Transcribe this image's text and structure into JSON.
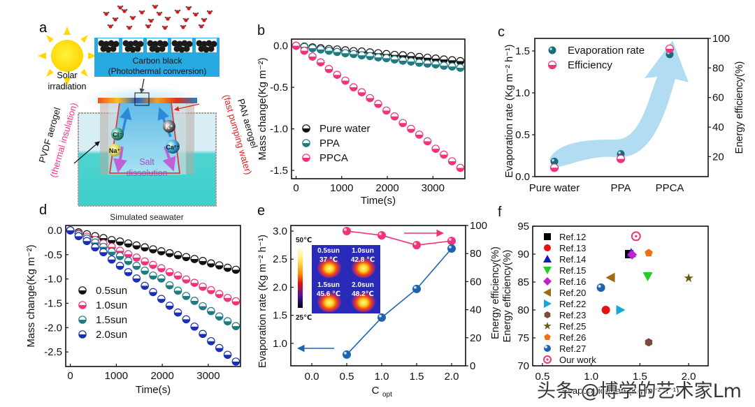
{
  "panels": {
    "a": {
      "label": "a",
      "sun_label_1": "Solar",
      "sun_label_2": "irradiation",
      "carbon_label_1": "Carbon black",
      "carbon_label_2": "(Photothermal conversion)",
      "pvdf_label": "PVDF aerogel",
      "pvdf_sub": "(thermal insulation)",
      "pan_label": "PAN aerogel",
      "pan_sub": "(fast pumping water)",
      "ions": [
        "Cl⁻",
        "Na⁺",
        "K⁺",
        "Ca²⁺"
      ],
      "salt_label_1": "Salt",
      "salt_label_2": "dissolution",
      "seawater_label": "Simulated seawater"
    },
    "e_inset": {
      "scale_max": "50℃",
      "scale_min": "25℃",
      "cells": [
        {
          "sun": "0.5sun",
          "temp": "37 ℃"
        },
        {
          "sun": "1.0sun",
          "temp": "42.8 ℃"
        },
        {
          "sun": "1.5sun",
          "temp": "45.6 ℃"
        },
        {
          "sun": "2.0sun",
          "temp": "48.2℃"
        }
      ]
    },
    "f_xlabel": "Evaporation rate(Kg m⁻² h⁻¹)"
  },
  "watermark": "头条 @博学的艺术家Lm",
  "colors": {
    "pure_water": "#111111",
    "ppa": "#1f7a82",
    "ppca": "#f0337a",
    "sun05": "#111111",
    "sun10": "#f0337a",
    "sun15": "#1f7a82",
    "sun20": "#1b2fb5",
    "evap": "#1f63b0",
    "eff": "#f0337a",
    "arrow_c": "#a8d8f0"
  },
  "chart_data": [
    {
      "panel": "b",
      "type": "scatter",
      "title": "",
      "xlabel": "Time(s)",
      "ylabel": "Mass change(Kg m⁻²)",
      "xlim": [
        -100,
        3700
      ],
      "ylim": [
        -1.6,
        0.08
      ],
      "xticks": [
        0,
        1000,
        2000,
        3000
      ],
      "yticks": [
        0.0,
        -0.5,
        -1.0,
        -1.5
      ],
      "ytick_labels": [
        "0.0",
        "-0.5",
        "-1.0",
        "-1.5"
      ],
      "legend": "bottom-left",
      "x": [
        0,
        180,
        360,
        540,
        720,
        900,
        1080,
        1260,
        1440,
        1620,
        1800,
        1980,
        2160,
        2340,
        2520,
        2700,
        2880,
        3060,
        3240,
        3420,
        3600
      ],
      "series": [
        {
          "name": "Pure water",
          "color_key": "pure_water",
          "values": [
            0,
            -0.01,
            -0.02,
            -0.03,
            -0.04,
            -0.045,
            -0.055,
            -0.065,
            -0.07,
            -0.08,
            -0.09,
            -0.1,
            -0.11,
            -0.115,
            -0.125,
            -0.135,
            -0.145,
            -0.155,
            -0.165,
            -0.175,
            -0.185
          ]
        },
        {
          "name": "PPA",
          "color_key": "ppa",
          "values": [
            0,
            -0.015,
            -0.03,
            -0.045,
            -0.06,
            -0.075,
            -0.09,
            -0.1,
            -0.115,
            -0.125,
            -0.14,
            -0.15,
            -0.165,
            -0.18,
            -0.19,
            -0.205,
            -0.215,
            -0.225,
            -0.24,
            -0.25,
            -0.265
          ]
        },
        {
          "name": "PPCA",
          "color_key": "ppca",
          "values": [
            0,
            -0.06,
            -0.13,
            -0.2,
            -0.28,
            -0.35,
            -0.42,
            -0.5,
            -0.56,
            -0.63,
            -0.7,
            -0.78,
            -0.85,
            -0.93,
            -1.0,
            -1.07,
            -1.15,
            -1.24,
            -1.31,
            -1.39,
            -1.47
          ]
        }
      ]
    },
    {
      "panel": "c",
      "type": "scatter",
      "title": "",
      "categories": [
        "Pure water",
        "PPA",
        "PPCA"
      ],
      "xlabel": "",
      "ylabel": "Evaporation rate (Kg m⁻² h⁻¹)",
      "ylabel_right": "Energy efficiency(%)",
      "ylim": [
        0,
        1.65
      ],
      "ylim_right": [
        6.5,
        100
      ],
      "yticks": [
        0.0,
        0.5,
        1.0,
        1.5
      ],
      "ytick_labels": [
        "0.0",
        "0.5",
        "1.0",
        "1.5"
      ],
      "yticks_right": [
        20,
        40,
        60,
        80,
        100
      ],
      "legend": "top-left",
      "series": [
        {
          "name": "Evaporation rate",
          "axis": "left",
          "color_key": "evap",
          "values": [
            0.18,
            0.27,
            1.46
          ]
        },
        {
          "name": "Efficiency",
          "axis": "right",
          "color_key": "eff",
          "values": [
            12.5,
            18.5,
            93
          ]
        }
      ],
      "annotations": [
        "upward arrow (light blue) through the three categories"
      ]
    },
    {
      "panel": "d",
      "type": "scatter",
      "title": "",
      "xlabel": "Time(s)",
      "ylabel": "Mass change(Kg m⁻²)",
      "xlim": [
        -100,
        3700
      ],
      "ylim": [
        -2.8,
        0.1
      ],
      "xticks": [
        0,
        1000,
        2000,
        3000
      ],
      "yticks": [
        0.0,
        -0.5,
        -1.0,
        -1.5,
        -2.0,
        -2.5
      ],
      "ytick_labels": [
        "0.0",
        "-0.5",
        "-1.0",
        "-1.5",
        "-2.0",
        "-2.5"
      ],
      "legend": "bottom-left",
      "x": [
        0,
        180,
        360,
        540,
        720,
        900,
        1080,
        1260,
        1440,
        1620,
        1800,
        1980,
        2160,
        2340,
        2520,
        2700,
        2880,
        3060,
        3240,
        3420,
        3600
      ],
      "series": [
        {
          "name": "0.5sun",
          "color_key": "sun05",
          "values": [
            0,
            -0.04,
            -0.08,
            -0.12,
            -0.16,
            -0.2,
            -0.23,
            -0.27,
            -0.31,
            -0.35,
            -0.39,
            -0.43,
            -0.47,
            -0.51,
            -0.55,
            -0.59,
            -0.63,
            -0.68,
            -0.72,
            -0.77,
            -0.81
          ]
        },
        {
          "name": "1.0sun",
          "color_key": "sun10",
          "values": [
            0,
            -0.06,
            -0.13,
            -0.2,
            -0.27,
            -0.34,
            -0.42,
            -0.49,
            -0.56,
            -0.64,
            -0.71,
            -0.78,
            -0.86,
            -0.93,
            -1.01,
            -1.08,
            -1.16,
            -1.23,
            -1.31,
            -1.39,
            -1.46
          ]
        },
        {
          "name": "1.5sun",
          "color_key": "sun15",
          "values": [
            0,
            -0.08,
            -0.17,
            -0.25,
            -0.34,
            -0.44,
            -0.53,
            -0.63,
            -0.73,
            -0.83,
            -0.93,
            -0.99,
            -1.13,
            -1.24,
            -1.35,
            -1.45,
            -1.56,
            -1.66,
            -1.77,
            -1.87,
            -1.97
          ]
        },
        {
          "name": "2.0sun",
          "color_key": "sun20",
          "values": [
            0,
            -0.12,
            -0.22,
            -0.35,
            -0.45,
            -0.6,
            -0.73,
            -0.86,
            -0.99,
            -1.14,
            -1.27,
            -1.41,
            -1.55,
            -1.69,
            -1.83,
            -1.98,
            -2.13,
            -2.28,
            -2.42,
            -2.56,
            -2.7
          ]
        }
      ]
    },
    {
      "panel": "e",
      "type": "line",
      "title": "",
      "xlabel": "C",
      "xlabel_sub": "opt",
      "ylabel": "Evaporation rate (Kg m⁻² h⁻¹)",
      "ylabel_right": "Energy efficiency(%)",
      "xlim": [
        -0.3,
        2.2
      ],
      "ylim": [
        0.6,
        3.1
      ],
      "ylim_right": [
        0,
        100
      ],
      "xticks": [
        0.0,
        0.5,
        1.0,
        1.5,
        2.0
      ],
      "xtick_labels": [
        "0.0",
        "0.5",
        "1.0",
        "1.5",
        "2.0"
      ],
      "yticks": [
        1.0,
        1.5,
        2.0,
        2.5,
        3.0
      ],
      "ytick_labels": [
        "1.0",
        "1.5",
        "2.0",
        "2.5",
        "3.0"
      ],
      "yticks_right": [
        0,
        20,
        40,
        60,
        80,
        100
      ],
      "x": [
        0.5,
        1.0,
        1.5,
        2.0
      ],
      "series": [
        {
          "name": "Evaporation rate",
          "axis": "left",
          "color_key": "evap",
          "values": [
            0.8,
            1.46,
            1.97,
            2.69
          ]
        },
        {
          "name": "Energy efficiency",
          "axis": "right",
          "color_key": "eff",
          "values": [
            96,
            93,
            86,
            89
          ]
        }
      ],
      "annotations": [
        "left-pointing blue arrow → left axis",
        "right-pointing pink arrow → right axis",
        "inset: IR thermal images"
      ]
    },
    {
      "panel": "f",
      "type": "scatter",
      "title": "",
      "xlabel": "Evaporation rate(Kg m⁻² h⁻¹)",
      "ylabel": "Energy efficiency(%)",
      "xlim": [
        0.4,
        2.2
      ],
      "ylim": [
        70,
        95
      ],
      "xticks": [
        0.5,
        1.0,
        1.5,
        2.0
      ],
      "xtick_labels": [
        "0.5",
        "1.0",
        "1.5",
        "2.0"
      ],
      "yticks": [
        70,
        75,
        80,
        85,
        90,
        95
      ],
      "legend": "top-left",
      "points": [
        {
          "name": "Ref.12",
          "marker": "square",
          "color": "#000000",
          "x": 1.39,
          "y": 90
        },
        {
          "name": "Ref.13",
          "marker": "circle",
          "color": "#e81010",
          "x": 1.15,
          "y": 80
        },
        {
          "name": "Ref.14",
          "marker": "triangle-up",
          "color": "#1414c8",
          "x": 1.41,
          "y": 90.2
        },
        {
          "name": "Ref.15",
          "marker": "triangle-down",
          "color": "#22cc22",
          "x": 1.58,
          "y": 86
        },
        {
          "name": "Ref.16",
          "marker": "diamond",
          "color": "#c020d0",
          "x": 1.42,
          "y": 89.9
        },
        {
          "name": "Ref.20",
          "marker": "triangle-left",
          "color": "#a06a10",
          "x": 1.2,
          "y": 85.8
        },
        {
          "name": "Ref.22",
          "marker": "triangle-right",
          "color": "#18a8d8",
          "x": 1.3,
          "y": 80
        },
        {
          "name": "Ref.23",
          "marker": "hexagon",
          "color": "#7a4a40",
          "x": 1.59,
          "y": 74.2
        },
        {
          "name": "Ref.25",
          "marker": "star",
          "color": "#6a5a10",
          "x": 2.0,
          "y": 85.7
        },
        {
          "name": "Ref.26",
          "marker": "pentagon",
          "color": "#f07010",
          "x": 1.59,
          "y": 90.2
        },
        {
          "name": "Ref.27",
          "marker": "ball",
          "color": "#1f63b0",
          "x": 1.1,
          "y": 84
        },
        {
          "name": "Our work",
          "marker": "bullseye",
          "color": "#f0337a",
          "x": 1.46,
          "y": 93.2
        }
      ]
    }
  ]
}
